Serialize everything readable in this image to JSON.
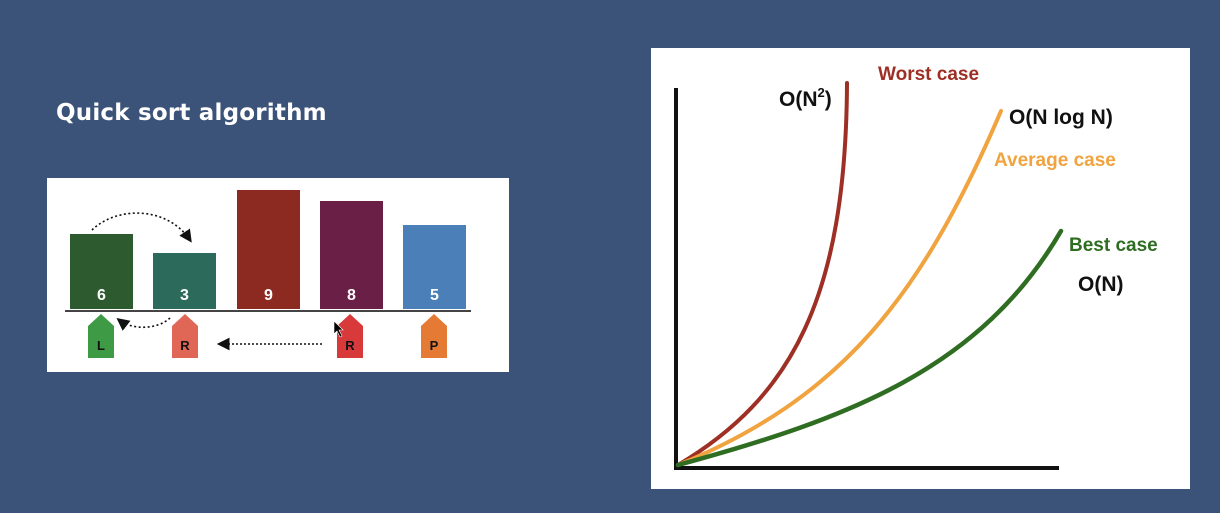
{
  "slide": {
    "title": "Quick sort algorithm"
  },
  "sort_diagram": {
    "bars": [
      {
        "value": "6",
        "color": "#2d5a2e"
      },
      {
        "value": "3",
        "color": "#2c6a5c"
      },
      {
        "value": "9",
        "color": "#8c2a22"
      },
      {
        "value": "8",
        "color": "#6a1f47"
      },
      {
        "value": "5",
        "color": "#4a7fb8"
      }
    ],
    "markers": [
      {
        "label": "L",
        "color": "#3f9a45"
      },
      {
        "label": "R",
        "color": "#e06656"
      },
      {
        "label": "R",
        "color": "#d8393a"
      },
      {
        "label": "P",
        "color": "#e47a33"
      }
    ]
  },
  "complexity_chart": {
    "curves": [
      {
        "case_label": "Worst case",
        "notation": "O(N",
        "notation_sup": "2",
        "notation_close": ")",
        "color": "#9e2f25"
      },
      {
        "case_label": "Average case",
        "notation": "O(N log N)",
        "color": "#f0a33e"
      },
      {
        "case_label": "Best case",
        "notation": "O(N)",
        "color": "#2f6e22"
      }
    ],
    "axis_color": "#111111"
  }
}
